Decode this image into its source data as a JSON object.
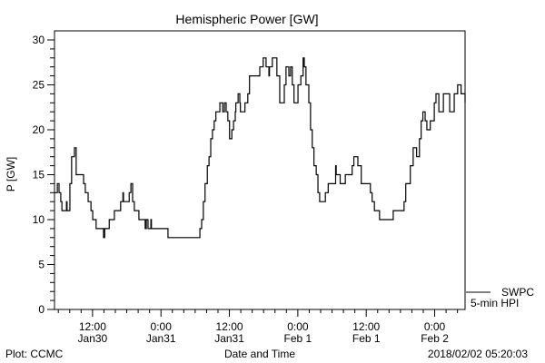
{
  "chart_data": {
    "type": "line",
    "title": "Hemispheric Power [GW]",
    "xlabel": "Date and Time",
    "ylabel": "P [GW]",
    "x_unit": "hours since 2018/01/30 05:20",
    "xlim": [
      0,
      72
    ],
    "ylim": [
      0,
      30
    ],
    "yticks": [
      0,
      5,
      10,
      15,
      20,
      25,
      30
    ],
    "xticks": [
      {
        "hour": 6.67,
        "line1": "12:00",
        "line2": "Jan30"
      },
      {
        "hour": 18.67,
        "line1": "0:00",
        "line2": "Jan31"
      },
      {
        "hour": 30.67,
        "line1": "12:00",
        "line2": "Jan31"
      },
      {
        "hour": 42.67,
        "line1": "0:00",
        "line2": "Feb 1"
      },
      {
        "hour": 54.67,
        "line1": "12:00",
        "line2": "Feb 1"
      },
      {
        "hour": 66.67,
        "line1": "0:00",
        "line2": "Feb 2"
      }
    ],
    "legend": {
      "placement": "right-bottom",
      "line1": "SWPC",
      "line2": "5-min HPI"
    },
    "series": [
      {
        "name": "SWPC 5-min HPI",
        "color": "#000000",
        "x": [
          0,
          0.5,
          0.8,
          1.1,
          1.3,
          1.9,
          2.1,
          2.2,
          2.5,
          2.7,
          3.0,
          3.5,
          3.8,
          4.8,
          5.1,
          5.4,
          5.9,
          6.4,
          6.7,
          7.3,
          8.3,
          8.6,
          8.8,
          9.4,
          9.6,
          10.2,
          10.5,
          11.5,
          11.6,
          12.0,
          12.1,
          12.7,
          13.1,
          13.4,
          13.7,
          14.0,
          14.6,
          14.8,
          15.6,
          15.9,
          16.1,
          16.4,
          16.7,
          16.9,
          17.0,
          17.5,
          19.7,
          19.9,
          25.3,
          25.5,
          25.8,
          26.1,
          26.4,
          26.8,
          27.1,
          27.4,
          27.7,
          28.0,
          28.3,
          28.7,
          29.0,
          29.3,
          29.5,
          29.8,
          30.1,
          30.4,
          30.7,
          31.1,
          31.4,
          31.7,
          31.8,
          32.2,
          32.5,
          32.6,
          33.1,
          33.4,
          33.9,
          34.2,
          35.7,
          36.0,
          36.6,
          37.1,
          37.6,
          37.7,
          38.2,
          38.7,
          39.0,
          39.5,
          39.9,
          40.3,
          40.6,
          40.9,
          41.1,
          41.4,
          41.7,
          42.0,
          42.4,
          42.7,
          43.2,
          43.6,
          43.8,
          44.1,
          44.6,
          44.9,
          45.2,
          45.5,
          45.9,
          46.2,
          46.5,
          47.3,
          47.5,
          48.0,
          49.3,
          49.4,
          50.1,
          51.0,
          52.2,
          52.5,
          53.2,
          53.8,
          55.4,
          55.7,
          56.1,
          57.0,
          58.9,
          59.4,
          60.5,
          61.3,
          61.6,
          62.4,
          62.9,
          63.5,
          64.0,
          64.3,
          64.6,
          65.0,
          65.3,
          65.9,
          66.6,
          66.9,
          67.4,
          68.2,
          68.8,
          69.3,
          70.1,
          70.7,
          71.3,
          72.0
        ],
        "y": [
          13,
          14,
          13,
          12,
          11,
          11,
          12,
          11,
          11,
          14,
          17,
          18,
          15,
          15,
          14,
          13,
          12,
          11,
          10,
          9,
          9,
          8,
          9,
          9,
          10,
          10,
          11,
          11,
          12,
          13,
          12,
          12,
          13,
          14,
          12,
          11,
          11,
          10,
          10,
          9,
          10,
          9,
          9,
          10,
          9,
          9,
          9,
          8,
          8,
          9,
          10,
          12,
          14,
          16,
          17,
          19,
          20,
          21,
          22,
          22,
          23,
          23,
          22,
          23,
          22,
          21,
          19,
          20,
          21,
          22,
          23,
          24,
          23,
          22,
          22,
          23,
          24,
          26,
          26,
          27,
          28,
          27,
          26,
          27,
          28,
          28,
          26,
          23,
          23,
          25,
          27,
          27,
          26,
          27,
          25,
          23,
          23,
          25,
          26,
          28,
          27,
          25,
          23,
          20,
          18,
          16,
          15,
          13,
          12,
          12,
          13,
          14,
          16,
          15,
          14,
          15,
          16,
          17,
          16,
          14,
          13,
          12,
          11,
          10,
          10,
          11,
          11,
          12,
          14,
          16,
          18,
          17,
          19,
          21,
          22,
          21,
          20,
          21,
          23,
          24,
          22,
          24,
          24,
          22,
          24,
          25,
          24,
          23
        ]
      }
    ]
  },
  "footer": {
    "left": "Plot: CCMC",
    "right": "2018/02/02 05:20:03"
  }
}
